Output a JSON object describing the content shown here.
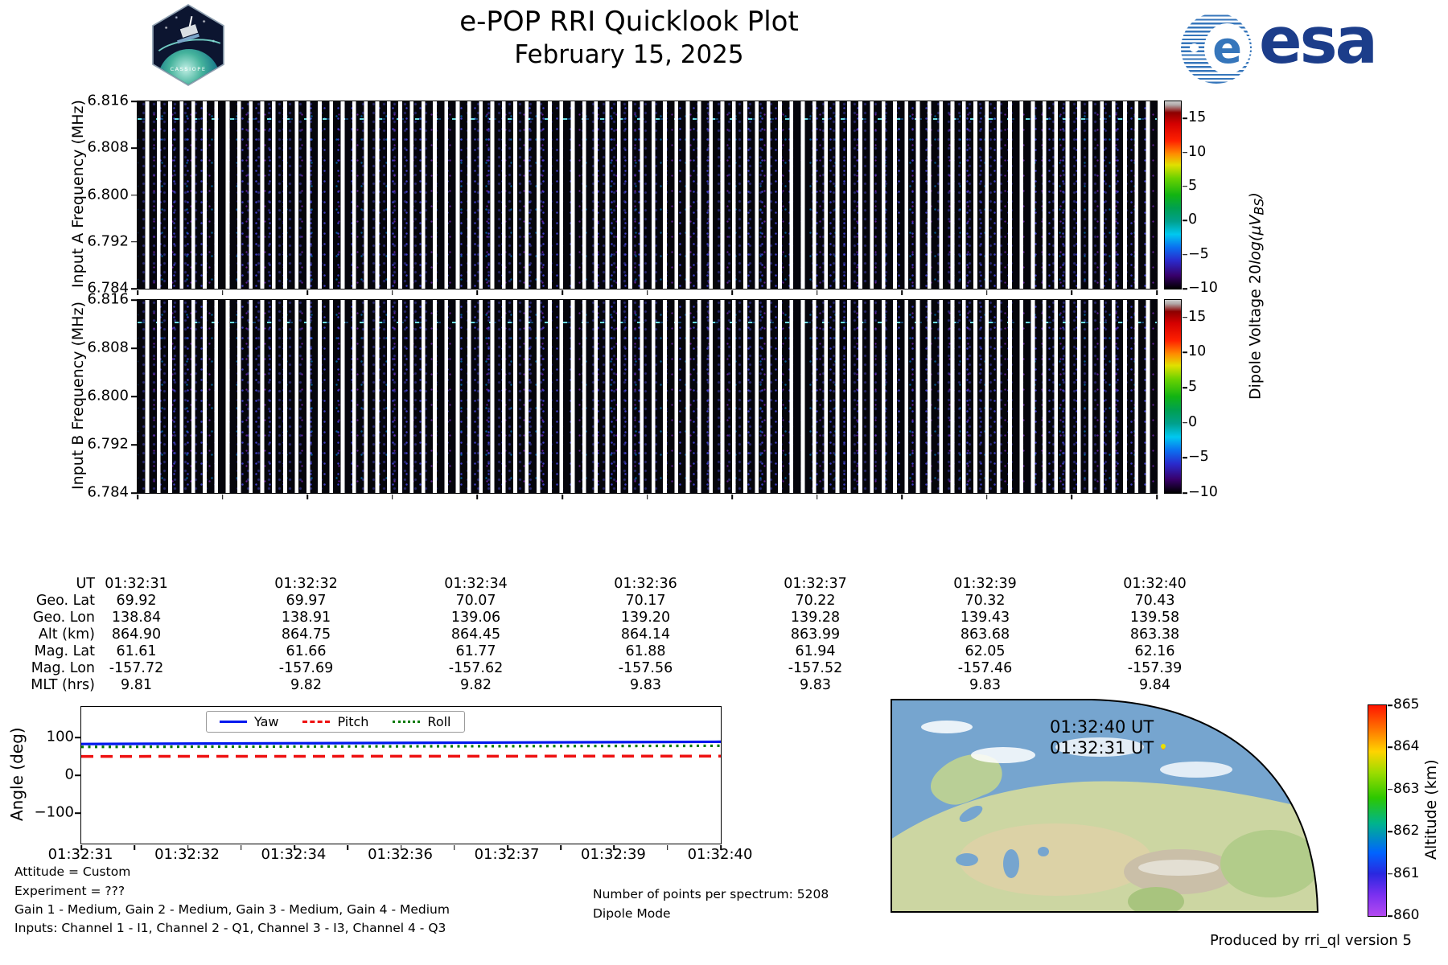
{
  "header": {
    "title": "e-POP RRI Quicklook Plot",
    "date": "February 15, 2025",
    "esa_wordmark": "esa",
    "patch_label": "CASSIOPE"
  },
  "panelA": {
    "ylabel": "Input A Frequency (MHz)",
    "yticks": [
      "6.816",
      "6.808",
      "6.800",
      "6.792",
      "6.784"
    ]
  },
  "panelB": {
    "ylabel": "Input B Frequency (MHz)",
    "yticks": [
      "6.816",
      "6.808",
      "6.800",
      "6.792",
      "6.784"
    ]
  },
  "dipole_colorbar": {
    "ticks": [
      "15",
      "10",
      "5",
      "0",
      "−5",
      "−10"
    ],
    "label_prefix": "Dipole Voltage 20",
    "label_math": "log(μV",
    "label_sub": "BS",
    "label_suffix": ")"
  },
  "ephemeris": {
    "rows": [
      {
        "label": "UT",
        "values": [
          "01:32:31",
          "01:32:32",
          "01:32:34",
          "01:32:36",
          "01:32:37",
          "01:32:39",
          "01:32:40"
        ]
      },
      {
        "label": "Geo. Lat",
        "values": [
          "69.92",
          "69.97",
          "70.07",
          "70.17",
          "70.22",
          "70.32",
          "70.43"
        ]
      },
      {
        "label": "Geo. Lon",
        "values": [
          "138.84",
          "138.91",
          "139.06",
          "139.20",
          "139.28",
          "139.43",
          "139.58"
        ]
      },
      {
        "label": "Alt (km)",
        "values": [
          "864.90",
          "864.75",
          "864.45",
          "864.14",
          "863.99",
          "863.68",
          "863.38"
        ]
      },
      {
        "label": "Mag. Lat",
        "values": [
          "61.61",
          "61.66",
          "61.77",
          "61.88",
          "61.94",
          "62.05",
          "62.16"
        ]
      },
      {
        "label": "Mag. Lon",
        "values": [
          "-157.72",
          "-157.69",
          "-157.62",
          "-157.56",
          "-157.52",
          "-157.46",
          "-157.39"
        ]
      },
      {
        "label": "MLT (hrs)",
        "values": [
          "9.81",
          "9.82",
          "9.82",
          "9.83",
          "9.83",
          "9.83",
          "9.84"
        ]
      }
    ]
  },
  "angle_plot": {
    "ylabel": "Angle (deg)",
    "yticks": [
      "100",
      "0",
      "−100"
    ],
    "xticks": [
      "01:32:31",
      "01:32:32",
      "01:32:34",
      "01:32:36",
      "01:32:37",
      "01:32:39",
      "01:32:40"
    ],
    "legend": {
      "yaw": "Yaw",
      "pitch": "Pitch",
      "roll": "Roll"
    },
    "colors": {
      "yaw": "#0018ee",
      "pitch": "#ee1111",
      "roll": "#007a00"
    }
  },
  "map": {
    "label_end": "01:32:40 UT",
    "label_start": "01:32:31 UT"
  },
  "altitude_colorbar": {
    "label": "Altitude (km)",
    "ticks": [
      "865",
      "864",
      "863",
      "862",
      "861",
      "860"
    ]
  },
  "footer": {
    "attitude": "Attitude = Custom",
    "experiment": "Experiment = ???",
    "gains": "Gain 1 - Medium, Gain 2 - Medium, Gain 3 - Medium, Gain 4 - Medium",
    "inputs": "Inputs: Channel 1 - I1, Channel 2 - Q1, Channel 3 - I3, Channel 4 - Q3",
    "points": "Number of points per spectrum: 5208",
    "mode": "Dipole Mode",
    "produced": "Produced by rri_ql version 5"
  },
  "chart_data": [
    {
      "type": "heatmap",
      "name": "input_a_spectrogram",
      "ylabel": "Input A Frequency (MHz)",
      "ylim": [
        6.784,
        6.816
      ],
      "yticks": [
        6.816,
        6.808,
        6.8,
        6.792,
        6.784
      ],
      "x_start": "01:32:31",
      "x_end": "01:32:40",
      "colorbar": {
        "label": "Dipole Voltage 20log(uV_BS)",
        "ticks": [
          15,
          10,
          5,
          0,
          -5,
          -10
        ],
        "range": [
          -10,
          17.5
        ],
        "colormap": "nipy_spectral"
      },
      "content": "About 88 narrow vertical spectrum columns of near-noise-floor signal (dark, roughly -10 to -5) separated by white gaps; faint enhanced emission line near 6.813 MHz"
    },
    {
      "type": "heatmap",
      "name": "input_b_spectrogram",
      "ylabel": "Input B Frequency (MHz)",
      "ylim": [
        6.784,
        6.816
      ],
      "yticks": [
        6.816,
        6.808,
        6.8,
        6.792,
        6.784
      ],
      "x_start": "01:32:31",
      "x_end": "01:32:40",
      "colorbar": {
        "label": "Dipole Voltage 20log(uV_BS)",
        "ticks": [
          15,
          10,
          5,
          0,
          -5,
          -10
        ],
        "range": [
          -10,
          17.5
        ],
        "colormap": "nipy_spectral"
      },
      "content": "Same stripe pattern as Input A with a slightly stronger wavy enhancement line near 6.812 MHz"
    },
    {
      "type": "table",
      "name": "ephemeris",
      "row_labels": [
        "UT",
        "Geo. Lat",
        "Geo. Lon",
        "Alt (km)",
        "Mag. Lat",
        "Mag. Lon",
        "MLT (hrs)"
      ],
      "columns": [
        [
          "01:32:31",
          "69.92",
          "138.84",
          "864.90",
          "61.61",
          "-157.72",
          "9.81"
        ],
        [
          "01:32:32",
          "69.97",
          "138.91",
          "864.75",
          "61.66",
          "-157.69",
          "9.82"
        ],
        [
          "01:32:34",
          "70.07",
          "139.06",
          "864.45",
          "61.77",
          "-157.62",
          "9.82"
        ],
        [
          "01:32:36",
          "70.17",
          "139.20",
          "864.14",
          "61.88",
          "-157.56",
          "9.83"
        ],
        [
          "01:32:37",
          "70.22",
          "139.28",
          "863.99",
          "61.94",
          "-157.52",
          "9.83"
        ],
        [
          "01:32:39",
          "70.32",
          "139.43",
          "863.68",
          "62.05",
          "-157.46",
          "9.83"
        ],
        [
          "01:32:40",
          "70.43",
          "139.58",
          "863.38",
          "62.16",
          "-157.39",
          "9.84"
        ]
      ]
    },
    {
      "type": "line",
      "name": "attitude_angles",
      "ylabel": "Angle (deg)",
      "ylim": [
        -181,
        181
      ],
      "yticks": [
        100,
        0,
        -100
      ],
      "x": [
        "01:32:31",
        "01:32:32",
        "01:32:34",
        "01:32:36",
        "01:32:37",
        "01:32:39",
        "01:32:40"
      ],
      "series": [
        {
          "name": "Yaw",
          "style": "solid blue",
          "values": [
            82.5,
            83.2,
            84.0,
            84.8,
            85.3,
            86.2,
            87.0
          ]
        },
        {
          "name": "Pitch",
          "style": "dashed red",
          "values": [
            50.0,
            50.0,
            50.0,
            50.0,
            50.0,
            50.0,
            50.0
          ]
        },
        {
          "name": "Roll",
          "style": "dotted green",
          "values": [
            74.5,
            74.6,
            74.8,
            74.9,
            75.0,
            75.2,
            75.3
          ]
        }
      ],
      "legend_position": "top center",
      "grid": false
    },
    {
      "type": "map",
      "name": "ground_track_map",
      "region": "Eurasia, curved polar-projection wedge",
      "track_labels": [
        "01:32:40 UT",
        "01:32:31 UT"
      ],
      "ground_track_dot_color": "#eadf00",
      "altitude_colorbar": {
        "label": "Altitude (km)",
        "ticks": [
          865,
          864,
          863,
          862,
          861,
          860
        ],
        "range": [
          860,
          865
        ],
        "colormap": "rainbow_r"
      }
    }
  ]
}
